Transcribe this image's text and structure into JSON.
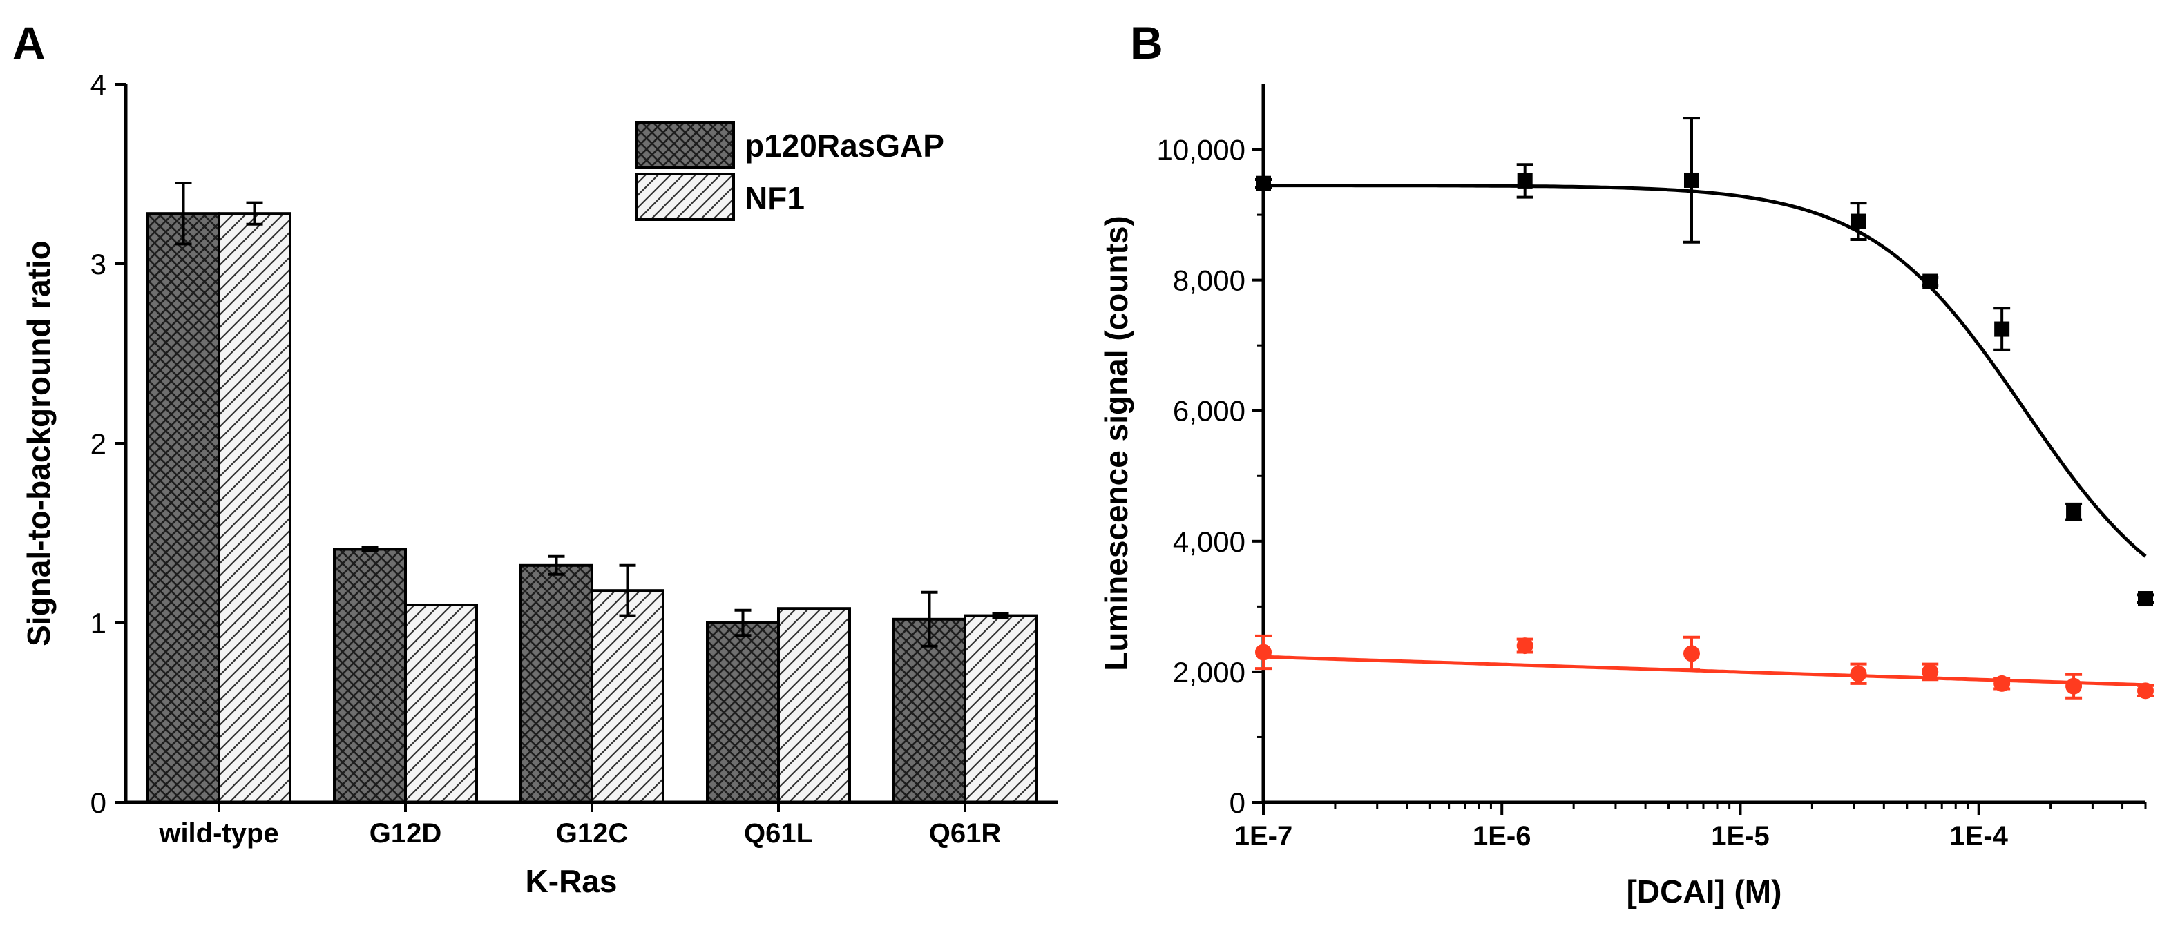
{
  "panel_labels": {
    "a": "A",
    "b": "B"
  },
  "chart_data": [
    {
      "type": "bar",
      "panel": "A",
      "xlabel": "K-Ras",
      "ylabel": "Signal-to-background ratio",
      "ylim": [
        0,
        4
      ],
      "yticks": [
        0,
        1,
        2,
        3,
        4
      ],
      "categories": [
        "wild-type",
        "G12D",
        "G12C",
        "Q61L",
        "Q61R"
      ],
      "legend_position": "top-right",
      "series": [
        {
          "name": "p120RasGAP",
          "values": [
            3.28,
            1.41,
            1.32,
            1.0,
            1.02
          ],
          "errors": [
            0.17,
            0.01,
            0.05,
            0.07,
            0.15
          ],
          "pattern": "crosshatch-dark"
        },
        {
          "name": "NF1",
          "values": [
            3.28,
            1.1,
            1.18,
            1.08,
            1.04
          ],
          "errors": [
            0.06,
            0.0,
            0.14,
            0.0,
            0.01
          ],
          "pattern": "diagonal-light"
        }
      ]
    },
    {
      "type": "scatter",
      "panel": "B",
      "xlabel": "[DCAI] (M)",
      "ylabel": "Luminescence signal (counts)",
      "xscale": "log",
      "xlim": [
        1e-07,
        0.0005
      ],
      "ylim": [
        0,
        11000
      ],
      "xticks": [
        1e-07,
        1e-06,
        1e-05,
        0.0001
      ],
      "xtick_labels": [
        "1E-7",
        "1E-6",
        "1E-5",
        "1E-4"
      ],
      "yticks": [
        0,
        2000,
        4000,
        6000,
        8000,
        10000
      ],
      "ytick_labels": [
        "0",
        "2,000",
        "4,000",
        "6,000",
        "8,000",
        "10,000"
      ],
      "series": [
        {
          "name": "black",
          "color": "#000000",
          "marker": "square",
          "x": [
            1e-07,
            1.25e-06,
            6.25e-06,
            3.13e-05,
            6.25e-05,
            0.000125,
            0.00025,
            0.0005
          ],
          "y": [
            9480,
            9520,
            9530,
            8900,
            7980,
            7250,
            4450,
            3120
          ],
          "err": [
            60,
            250,
            950,
            280,
            60,
            320,
            120,
            60
          ],
          "fit": {
            "model": "sigmoid",
            "top": 9450,
            "bottom": 2600,
            "ic50": 0.000155,
            "hill": 1.35
          }
        },
        {
          "name": "red",
          "color": "#ff3b1f",
          "marker": "circle",
          "x": [
            1e-07,
            1.25e-06,
            6.25e-06,
            3.13e-05,
            6.25e-05,
            0.000125,
            0.00025,
            0.0005
          ],
          "y": [
            2300,
            2400,
            2280,
            1970,
            2000,
            1820,
            1780,
            1710
          ],
          "err": [
            250,
            100,
            250,
            150,
            120,
            80,
            180,
            80
          ],
          "fit": {
            "model": "linear-log",
            "y_start": 2230,
            "y_end": 1800
          }
        }
      ]
    }
  ]
}
